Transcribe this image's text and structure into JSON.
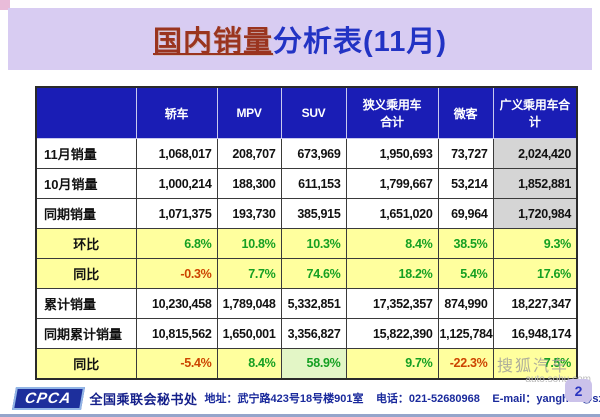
{
  "page": {
    "title_highlight": "国内销量",
    "title_rest": "分析表(11月)",
    "page_number": "2"
  },
  "table": {
    "columns": [
      "",
      "轿车",
      "MPV",
      "SUV",
      "狭义乘用车\n合计",
      "微客",
      "广义乘用车合计"
    ],
    "highlight": {
      "row": 7,
      "col": 2
    },
    "rows": [
      {
        "label": "11月销量",
        "style": "sales",
        "values": [
          "1,068,017",
          "208,707",
          "673,969",
          "1,950,693",
          "73,727",
          "2,024,420"
        ]
      },
      {
        "label": "10月销量",
        "style": "sales",
        "values": [
          "1,000,214",
          "188,300",
          "611,153",
          "1,799,667",
          "53,214",
          "1,852,881"
        ]
      },
      {
        "label": "同期销量",
        "style": "sales",
        "values": [
          "1,071,375",
          "193,730",
          "385,915",
          "1,651,020",
          "69,964",
          "1,720,984"
        ]
      },
      {
        "label": "环比",
        "style": "percent",
        "values": [
          "6.8%",
          "10.8%",
          "10.3%",
          "8.4%",
          "38.5%",
          "9.3%"
        ]
      },
      {
        "label": "同比",
        "style": "percent",
        "values": [
          "-0.3%",
          "7.7%",
          "74.6%",
          "18.2%",
          "5.4%",
          "17.6%"
        ]
      },
      {
        "label": "累计销量",
        "style": "cumulative",
        "values": [
          "10,230,458",
          "1,789,048",
          "5,332,851",
          "17,352,357",
          "874,990",
          "18,227,347"
        ]
      },
      {
        "label": "同期累计销量",
        "style": "cumulative",
        "values": [
          "10,815,562",
          "1,650,001",
          "3,356,827",
          "15,822,390",
          "1,125,784",
          "16,948,174"
        ]
      },
      {
        "label": "同比",
        "style": "percent",
        "values": [
          "-5.4%",
          "8.4%",
          "58.9%",
          "9.7%",
          "-22.3%",
          "7.5%"
        ]
      }
    ]
  },
  "footer": {
    "logo": "CPCA",
    "org": "全国乘联会秘书处",
    "address": "地址：武宁路423号18号楼901室",
    "phone": "电话：021-52680968",
    "email": "E-mail：yanghua@sxtauto.com.cn"
  },
  "watermark": {
    "brand": "搜狐汽车",
    "site": "auto.sohu.com"
  },
  "colors": {
    "banner_bg": "#d8ccf2",
    "header_bg": "#1a1db5",
    "percent_row_bg": "#ffff9e",
    "gray_col_bg": "#d5d5d5",
    "positive_text": "#15a022",
    "negative_text": "#cc4400",
    "title_red": "#9a341f",
    "title_blue": "#2233c4"
  }
}
